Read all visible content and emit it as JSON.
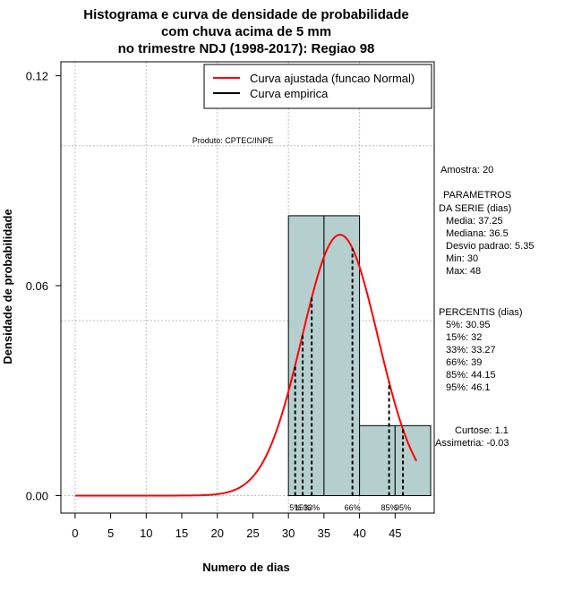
{
  "chart_data": {
    "type": "histogram",
    "title_lines": [
      "Histograma e curva de densidade de probabilidade",
      "com chuva acima de 5 mm",
      "no trimestre NDJ (1998-2017): Regiao 98"
    ],
    "xlabel": "Numero de dias",
    "ylabel": "Densidade de probabilidade",
    "xlim": [
      -2,
      50.5
    ],
    "ylim": [
      -0.005,
      0.124
    ],
    "x_ticks": [
      0,
      5,
      10,
      15,
      20,
      25,
      30,
      35,
      40,
      45
    ],
    "y_ticks": [
      0.0,
      0.06,
      0.12
    ],
    "y_tick_labels": [
      "0.00",
      "0.06",
      "0.12"
    ],
    "grid_x": [
      0,
      10,
      20,
      30,
      40
    ],
    "grid_y": [
      0.0,
      0.05,
      0.1
    ],
    "bins": [
      {
        "start": 30,
        "end": 35,
        "density": 0.08
      },
      {
        "start": 35,
        "end": 40,
        "density": 0.08
      },
      {
        "start": 40,
        "end": 45,
        "density": 0.02
      },
      {
        "start": 45,
        "end": 50,
        "density": 0.02
      }
    ],
    "normal_curve": {
      "mean": 37.25,
      "sd": 5.35,
      "x_range": [
        0,
        48
      ]
    },
    "legend": {
      "position": "top-right",
      "entries": [
        {
          "label": "Curva ajustada (funcao Normal)",
          "color": "#ff0000"
        },
        {
          "label": "Curva empirica",
          "color": "#000000"
        }
      ]
    },
    "product_label": "Produto: CPTEC/INPE",
    "percentile_lines": [
      {
        "label": "5%",
        "value": 30.95
      },
      {
        "label": "15%",
        "value": 32
      },
      {
        "label": "33%",
        "value": 33.27
      },
      {
        "label": "66%",
        "value": 39
      },
      {
        "label": "85%",
        "value": 44.15
      },
      {
        "label": "95%",
        "value": 46.1
      }
    ],
    "side_panel": {
      "amostra": "Amostra: 20",
      "param_title_1": "PARAMETROS",
      "param_title_2": "DA SERIE (dias)",
      "media": "Media: 37.25",
      "mediana": "Mediana: 36.5",
      "desvio": "Desvio padrao: 5.35",
      "min": "Min: 30",
      "max": "Max: 48",
      "perc_title": "PERCENTIS (dias)",
      "p5": "5%: 30.95",
      "p15": "15%: 32",
      "p33": "33%: 33.27",
      "p66": "66%: 39",
      "p85": "85%: 44.15",
      "p95": "95%: 46.1",
      "curtose": "Curtose: 1.1",
      "assimetria": "Assimetria: -0.03"
    },
    "colors": {
      "bar_fill": "#b5cfcf",
      "curve": "#ff0000",
      "grid": "#bdbdbd"
    }
  }
}
